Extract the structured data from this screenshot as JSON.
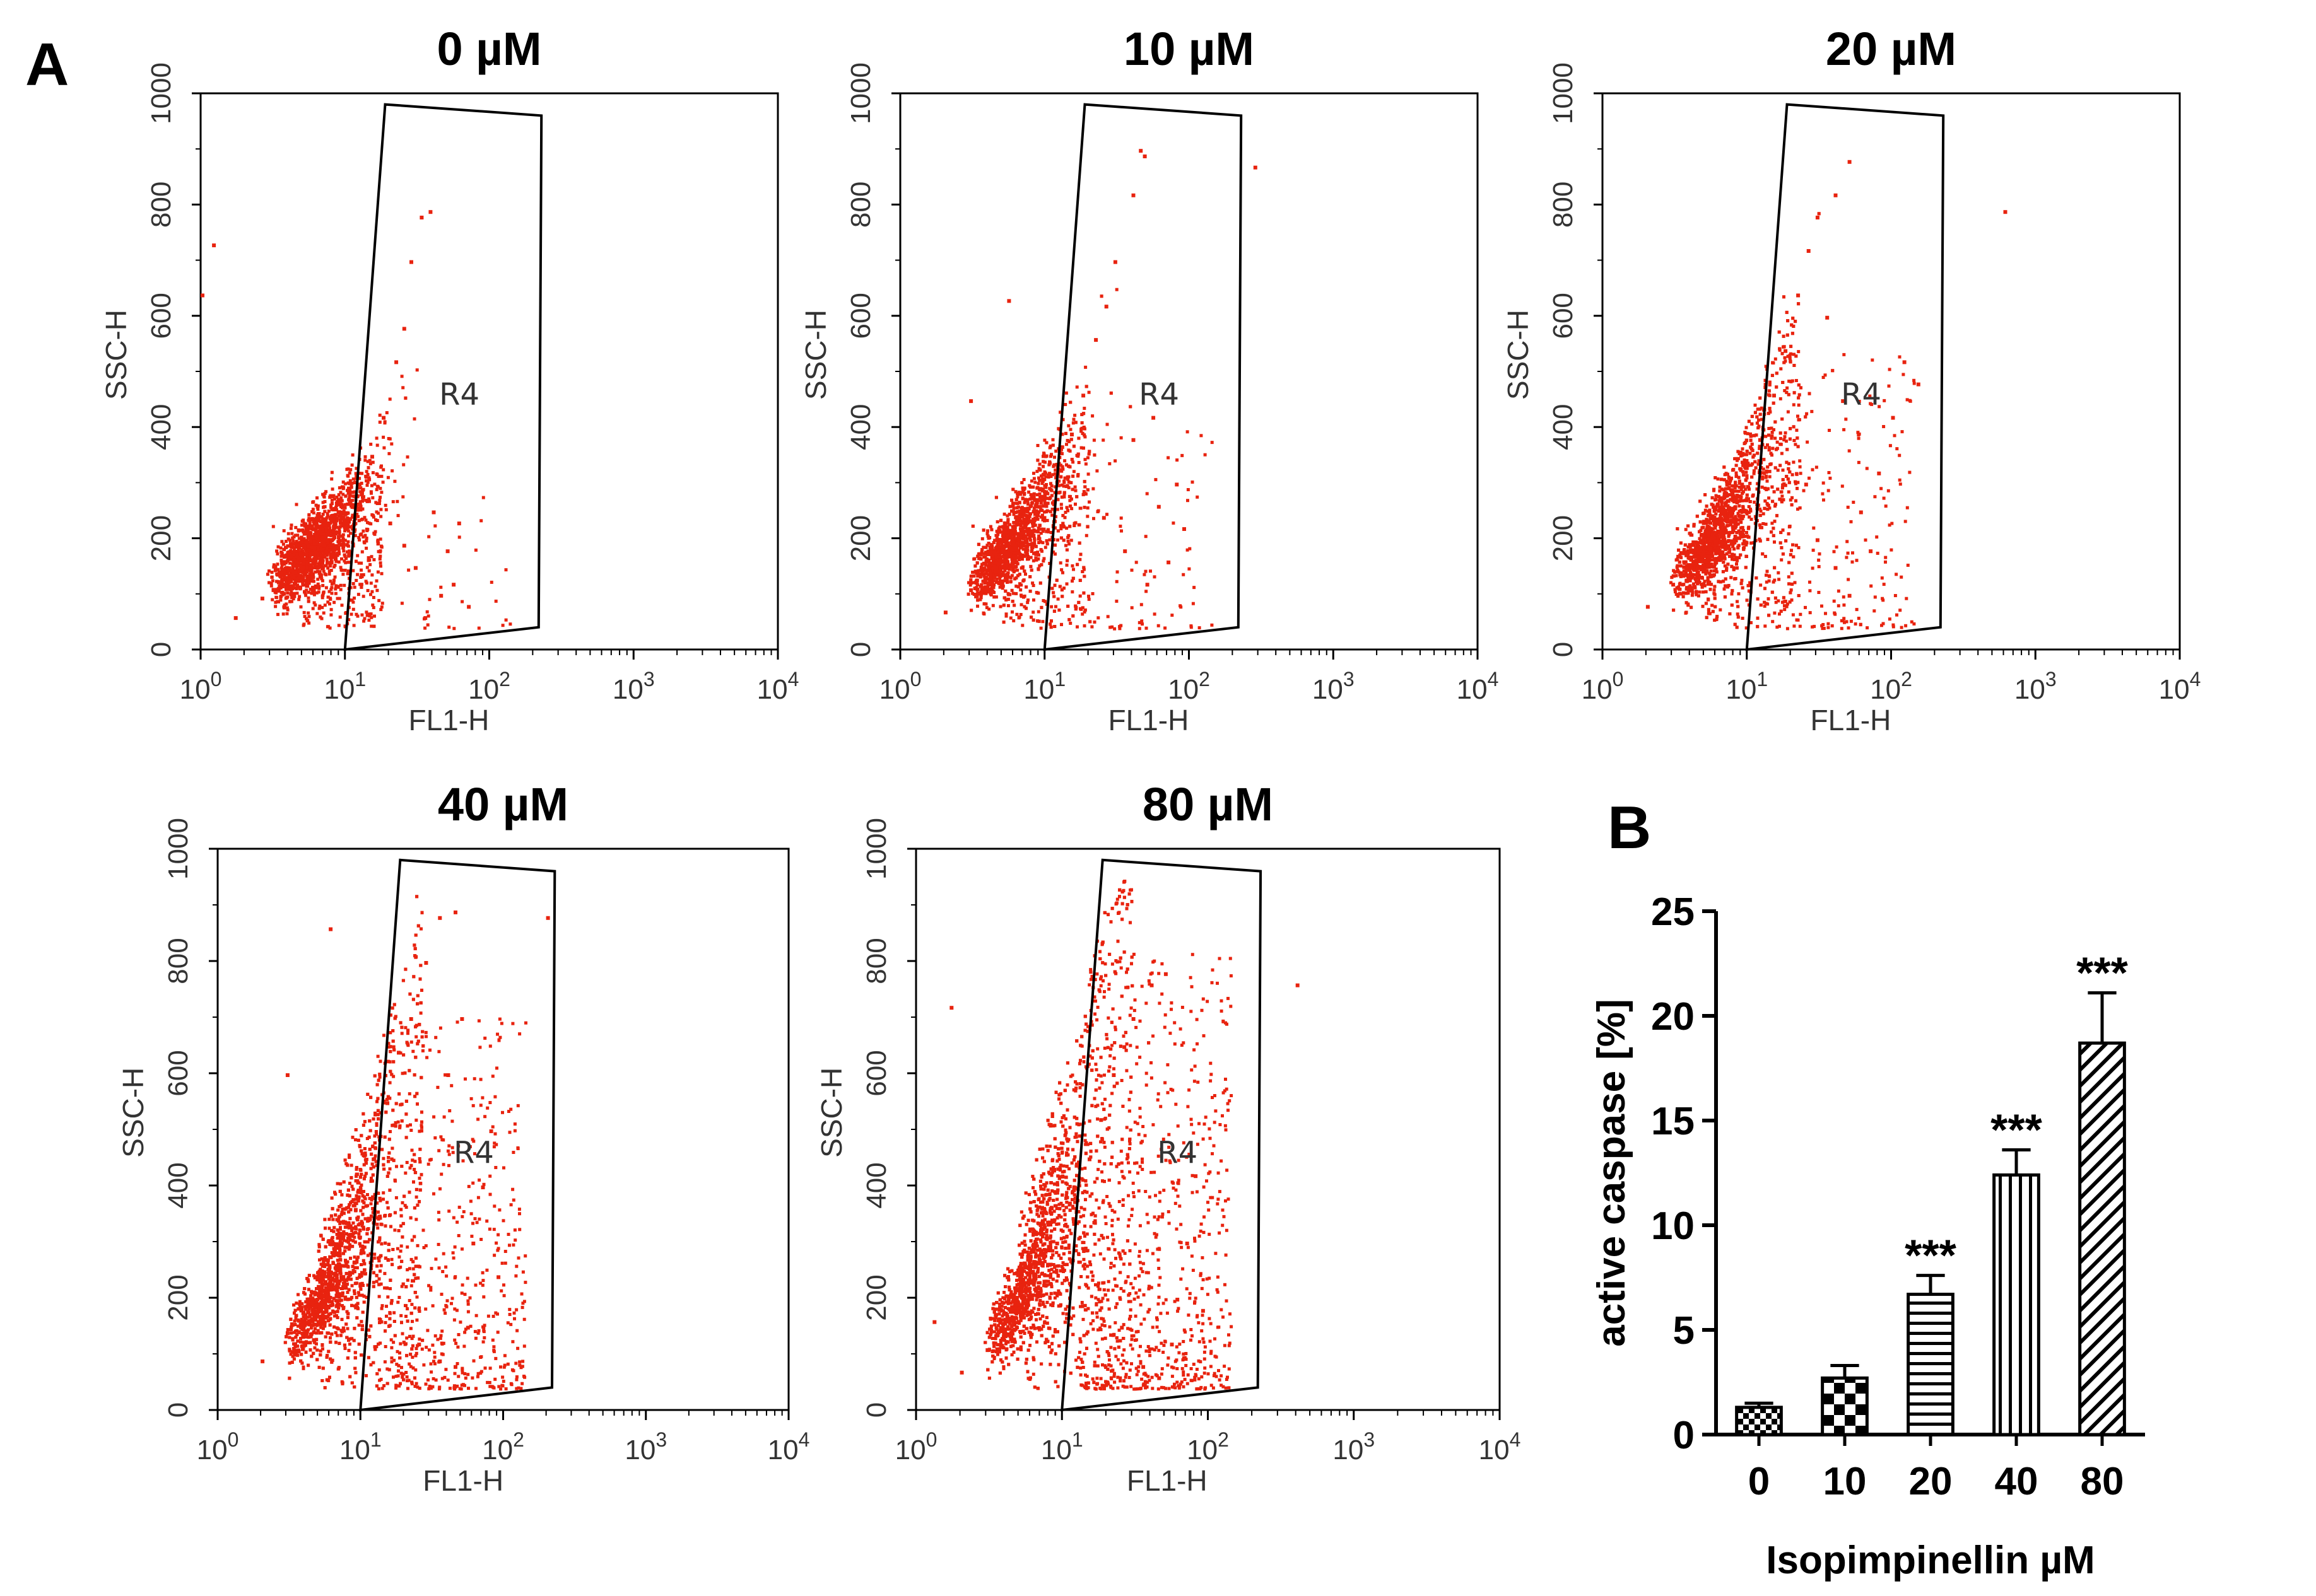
{
  "panel_labels": {
    "a": "A",
    "b": "B"
  },
  "colors": {
    "events": "#e8230f",
    "axes": "#000000",
    "text": "#333333"
  },
  "chart_data": [
    {
      "type": "scatter",
      "panel": "A",
      "title": "0 µM",
      "xlabel": "FL1-H",
      "ylabel": "SSC-H",
      "x_scale": "log",
      "x_ticks": [
        {
          "base": "10",
          "exp": "0"
        },
        {
          "base": "10",
          "exp": "1"
        },
        {
          "base": "10",
          "exp": "2"
        },
        {
          "base": "10",
          "exp": "3"
        },
        {
          "base": "10",
          "exp": "4"
        }
      ],
      "y_ticks": [
        "0",
        "200",
        "400",
        "600",
        "800",
        "1000"
      ],
      "xlim": [
        1,
        10000
      ],
      "ylim": [
        0,
        1000
      ],
      "gate": {
        "name": "R4",
        "vertices": [
          [
            10,
            0
          ],
          [
            19,
            980
          ],
          [
            230,
            960
          ],
          [
            220,
            40
          ]
        ]
      },
      "events": [
        [
          1.7,
          60
        ],
        [
          2.6,
          95
        ],
        [
          3.6,
          120
        ],
        [
          5.0,
          150
        ],
        [
          7.0,
          190
        ],
        [
          9.5,
          240
        ],
        [
          12,
          300
        ],
        [
          15,
          350
        ],
        [
          18,
          420
        ],
        [
          22,
          520
        ],
        [
          25,
          580
        ],
        [
          28,
          700
        ],
        [
          33,
          780
        ],
        [
          38,
          790
        ],
        [
          20,
          230
        ],
        [
          30,
          150
        ],
        [
          45,
          100
        ],
        [
          55,
          120
        ],
        [
          60,
          230
        ],
        [
          70,
          80
        ],
        [
          35,
          60
        ],
        [
          25,
          190
        ],
        [
          40,
          250
        ],
        [
          50,
          180
        ],
        [
          1.2,
          730
        ],
        [
          1.0,
          640
        ]
      ],
      "event_count_estimate": 5200,
      "gated_event_count_estimate": 60
    },
    {
      "type": "scatter",
      "panel": "A",
      "title": "10 µM",
      "xlabel": "FL1-H",
      "ylabel": "SSC-H",
      "x_scale": "log",
      "x_ticks": [
        {
          "base": "10",
          "exp": "0"
        },
        {
          "base": "10",
          "exp": "1"
        },
        {
          "base": "10",
          "exp": "2"
        },
        {
          "base": "10",
          "exp": "3"
        },
        {
          "base": "10",
          "exp": "4"
        }
      ],
      "y_ticks": [
        "0",
        "200",
        "400",
        "600",
        "800",
        "1000"
      ],
      "xlim": [
        1,
        10000
      ],
      "ylim": [
        0,
        1000
      ],
      "gate": {
        "name": "R4",
        "vertices": [
          [
            10,
            0
          ],
          [
            19,
            980
          ],
          [
            230,
            960
          ],
          [
            220,
            40
          ]
        ]
      },
      "events": [
        [
          2,
          70
        ],
        [
          3,
          110
        ],
        [
          4.5,
          150
        ],
        [
          6.5,
          200
        ],
        [
          9,
          260
        ],
        [
          12,
          320
        ],
        [
          15,
          390
        ],
        [
          18,
          460
        ],
        [
          22,
          560
        ],
        [
          26,
          620
        ],
        [
          30,
          700
        ],
        [
          40,
          820
        ],
        [
          45,
          900
        ],
        [
          48,
          890
        ],
        [
          25,
          240
        ],
        [
          35,
          180
        ],
        [
          50,
          120
        ],
        [
          60,
          260
        ],
        [
          70,
          160
        ],
        [
          80,
          300
        ],
        [
          90,
          220
        ],
        [
          40,
          380
        ],
        [
          55,
          420
        ],
        [
          280,
          870
        ],
        [
          5.5,
          630
        ],
        [
          3,
          450
        ]
      ],
      "event_count_estimate": 5400,
      "gated_event_count_estimate": 180
    },
    {
      "type": "scatter",
      "panel": "A",
      "title": "20 µM",
      "xlabel": "FL1-H",
      "ylabel": "SSC-H",
      "x_scale": "log",
      "x_ticks": [
        {
          "base": "10",
          "exp": "0"
        },
        {
          "base": "10",
          "exp": "1"
        },
        {
          "base": "10",
          "exp": "2"
        },
        {
          "base": "10",
          "exp": "3"
        },
        {
          "base": "10",
          "exp": "4"
        }
      ],
      "y_ticks": [
        "0",
        "200",
        "400",
        "600",
        "800",
        "1000"
      ],
      "xlim": [
        1,
        10000
      ],
      "ylim": [
        0,
        1000
      ],
      "gate": {
        "name": "R4",
        "vertices": [
          [
            10,
            0
          ],
          [
            19,
            980
          ],
          [
            230,
            960
          ],
          [
            220,
            40
          ]
        ]
      },
      "events": [
        [
          2,
          80
        ],
        [
          3,
          120
        ],
        [
          4.5,
          170
        ],
        [
          6.5,
          230
        ],
        [
          9,
          300
        ],
        [
          12,
          380
        ],
        [
          15,
          460
        ],
        [
          18,
          540
        ],
        [
          22,
          640
        ],
        [
          26,
          720
        ],
        [
          30,
          780
        ],
        [
          40,
          820
        ],
        [
          50,
          880
        ],
        [
          25,
          300
        ],
        [
          30,
          200
        ],
        [
          40,
          150
        ],
        [
          50,
          100
        ],
        [
          60,
          250
        ],
        [
          70,
          180
        ],
        [
          80,
          320
        ],
        [
          100,
          420
        ],
        [
          120,
          520
        ],
        [
          150,
          480
        ],
        [
          600,
          790
        ],
        [
          35,
          600
        ],
        [
          45,
          450
        ]
      ],
      "event_count_estimate": 6200,
      "gated_event_count_estimate": 420
    },
    {
      "type": "scatter",
      "panel": "A",
      "title": "40 µM",
      "xlabel": "FL1-H",
      "ylabel": "SSC-H",
      "x_scale": "log",
      "x_ticks": [
        {
          "base": "10",
          "exp": "0"
        },
        {
          "base": "10",
          "exp": "1"
        },
        {
          "base": "10",
          "exp": "2"
        },
        {
          "base": "10",
          "exp": "3"
        },
        {
          "base": "10",
          "exp": "4"
        }
      ],
      "y_ticks": [
        "0",
        "200",
        "400",
        "600",
        "800",
        "1000"
      ],
      "xlim": [
        1,
        10000
      ],
      "ylim": [
        0,
        1000
      ],
      "gate": {
        "name": "R4",
        "vertices": [
          [
            10,
            0
          ],
          [
            19,
            980
          ],
          [
            230,
            960
          ],
          [
            220,
            40
          ]
        ]
      },
      "events": [
        [
          2,
          90
        ],
        [
          3,
          140
        ],
        [
          4.5,
          200
        ],
        [
          6.5,
          280
        ],
        [
          9,
          360
        ],
        [
          12,
          450
        ],
        [
          15,
          550
        ],
        [
          18,
          640
        ],
        [
          22,
          700
        ],
        [
          28,
          800
        ],
        [
          35,
          880
        ],
        [
          45,
          890
        ],
        [
          200,
          880
        ],
        [
          25,
          120
        ],
        [
          35,
          90
        ],
        [
          45,
          80
        ],
        [
          55,
          150
        ],
        [
          60,
          300
        ],
        [
          70,
          400
        ],
        [
          80,
          500
        ],
        [
          40,
          600
        ],
        [
          50,
          700
        ],
        [
          90,
          240
        ],
        [
          6,
          860
        ],
        [
          3,
          600
        ]
      ],
      "event_count_estimate": 7800,
      "gated_event_count_estimate": 980
    },
    {
      "type": "scatter",
      "panel": "A",
      "title": "80 µM",
      "xlabel": "FL1-H",
      "ylabel": "SSC-H",
      "x_scale": "log",
      "x_ticks": [
        {
          "base": "10",
          "exp": "0"
        },
        {
          "base": "10",
          "exp": "1"
        },
        {
          "base": "10",
          "exp": "2"
        },
        {
          "base": "10",
          "exp": "3"
        },
        {
          "base": "10",
          "exp": "4"
        }
      ],
      "y_ticks": [
        "0",
        "200",
        "400",
        "600",
        "800",
        "1000"
      ],
      "xlim": [
        1,
        10000
      ],
      "ylim": [
        0,
        1000
      ],
      "gate": {
        "name": "R4",
        "vertices": [
          [
            10,
            0
          ],
          [
            19,
            980
          ],
          [
            230,
            960
          ],
          [
            220,
            40
          ]
        ]
      },
      "events": [
        [
          2,
          70
        ],
        [
          3,
          110
        ],
        [
          4.5,
          160
        ],
        [
          6.5,
          220
        ],
        [
          9,
          300
        ],
        [
          12,
          380
        ],
        [
          15,
          450
        ],
        [
          18,
          520
        ],
        [
          22,
          600
        ],
        [
          26,
          650
        ],
        [
          30,
          700
        ],
        [
          40,
          760
        ],
        [
          50,
          780
        ],
        [
          25,
          150
        ],
        [
          35,
          80
        ],
        [
          45,
          60
        ],
        [
          55,
          120
        ],
        [
          60,
          200
        ],
        [
          70,
          300
        ],
        [
          80,
          420
        ],
        [
          90,
          180
        ],
        [
          400,
          760
        ],
        [
          1.7,
          720
        ],
        [
          1.3,
          160
        ]
      ],
      "event_count_estimate": 6400,
      "gated_event_count_estimate": 1400
    },
    {
      "type": "bar",
      "panel": "B",
      "categories": [
        "0",
        "10",
        "20",
        "40",
        "80"
      ],
      "values": [
        1.3,
        2.7,
        6.7,
        12.4,
        18.7
      ],
      "errors": [
        0.2,
        0.6,
        0.9,
        1.2,
        2.4
      ],
      "patterns": [
        "checker-fine",
        "checker-coarse",
        "horizontal",
        "vertical",
        "diagonal"
      ],
      "significance": [
        "",
        "",
        "***",
        "***",
        "***"
      ],
      "xlabel": "Isopimpinellin µM",
      "ylabel": "active caspase [%]",
      "y_ticks": [
        "0",
        "5",
        "10",
        "15",
        "20",
        "25"
      ],
      "ylim": [
        0,
        25
      ]
    }
  ]
}
